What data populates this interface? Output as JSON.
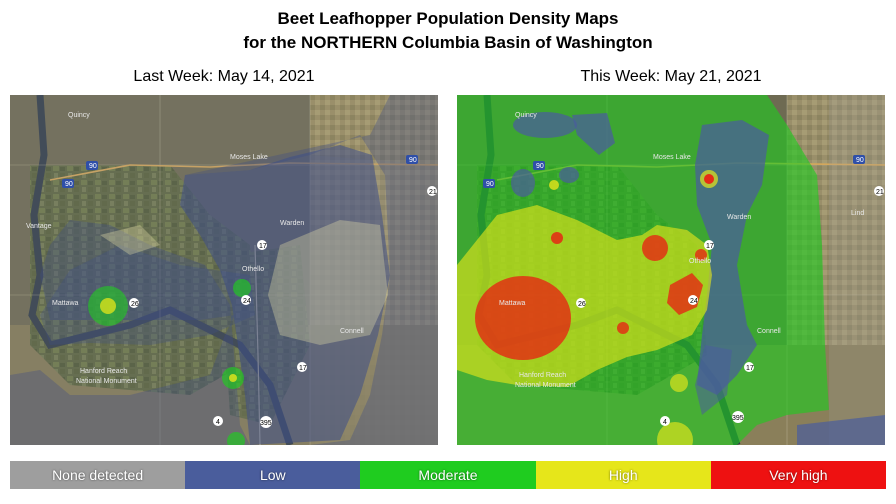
{
  "title": {
    "line1": "Beet Leafhopper Population Density Maps",
    "line2": "for the NORTHERN Columbia Basin of Washington"
  },
  "maps": {
    "last_week": {
      "label": "Last Week:  May 14, 2021"
    },
    "this_week": {
      "label": "This Week:  May 21, 2021"
    },
    "place_names": {
      "quincy": "Quincy",
      "moses_lake": "Moses Lake",
      "warden": "Warden",
      "othello": "Othello",
      "connell": "Connell",
      "mattawa": "Mattawa",
      "vantage": "Vantage",
      "lind": "Lind",
      "monument_line1": "Hanford Reach",
      "monument_line2": "National Monument"
    },
    "route_shields": [
      "90",
      "90",
      "90",
      "17",
      "17",
      "26",
      "24",
      "395",
      "21",
      "4"
    ]
  },
  "legend": [
    {
      "label": "None detected",
      "color": "#9e9e9e"
    },
    {
      "label": "Low",
      "color": "#4a5d9c"
    },
    {
      "label": "Moderate",
      "color": "#1fcc1f"
    },
    {
      "label": "High",
      "color": "#e6e61a"
    },
    {
      "label": "Very high",
      "color": "#ee1111"
    }
  ]
}
